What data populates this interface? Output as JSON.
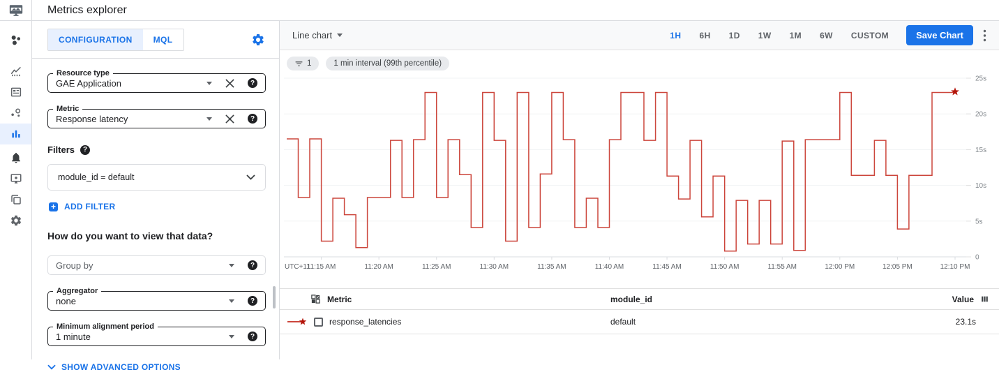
{
  "header": {
    "title": "Metrics explorer"
  },
  "sidebar": {
    "items": [
      {
        "icon": "overview-icon",
        "selected": false
      },
      {
        "icon": "metrics-icon",
        "selected": false
      },
      {
        "icon": "dashboards-icon",
        "selected": false
      },
      {
        "icon": "services-icon",
        "selected": false
      },
      {
        "icon": "metrics-explorer-icon",
        "selected": true
      },
      {
        "icon": "alerting-icon",
        "selected": false
      },
      {
        "icon": "uptime-checks-icon",
        "selected": false
      },
      {
        "icon": "groups-icon",
        "selected": false
      },
      {
        "icon": "settings-icon",
        "selected": false
      }
    ]
  },
  "config_panel": {
    "tabs": [
      {
        "label": "CONFIGURATION",
        "active": true
      },
      {
        "label": "MQL",
        "active": false
      }
    ],
    "resource_type": {
      "label": "Resource type",
      "value": "GAE Application"
    },
    "metric": {
      "label": "Metric",
      "value": "Response latency"
    },
    "filters_label": "Filters",
    "filter_value": "module_id = default",
    "add_filter_label": "ADD FILTER",
    "view_heading": "How do you want to view that data?",
    "group_by": {
      "placeholder": "Group by"
    },
    "aggregator": {
      "label": "Aggregator",
      "value": "none"
    },
    "min_alignment": {
      "label": "Minimum alignment period",
      "value": "1 minute"
    },
    "advanced_label": "SHOW ADVANCED OPTIONS"
  },
  "toolbar": {
    "chart_type": "Line chart",
    "time_ranges": [
      "1H",
      "6H",
      "1D",
      "1W",
      "1M",
      "6W",
      "CUSTOM"
    ],
    "active_range": "1H",
    "save_label": "Save Chart"
  },
  "chips": [
    {
      "icon": "filter-icon",
      "label": "1"
    },
    {
      "icon": "",
      "label": "1 min interval (99th percentile)"
    }
  ],
  "colors": {
    "accent_blue": "#1a73e8",
    "line_red": "#cc463c",
    "star_red": "#b31409",
    "tab_active_bg": "#e8f0fe"
  },
  "chart_data": {
    "type": "line",
    "step": true,
    "series": [
      {
        "name": "response_latencies",
        "color": "#cc463c"
      }
    ],
    "utc_label": "UTC+11",
    "x_start": "11:12 AM",
    "x_interval_minutes": 1,
    "x_tick_labels": [
      "11:15 AM",
      "11:20 AM",
      "11:25 AM",
      "11:30 AM",
      "11:35 AM",
      "11:40 AM",
      "11:45 AM",
      "11:50 AM",
      "11:55 AM",
      "12:00 PM",
      "12:05 PM",
      "12:10 PM"
    ],
    "x_tick_indices": [
      3,
      8,
      13,
      18,
      23,
      28,
      33,
      38,
      43,
      48,
      53,
      58
    ],
    "y_ticks": [
      0,
      5,
      10,
      15,
      20,
      25
    ],
    "y_tick_labels": [
      "0",
      "5s",
      "10s",
      "15s",
      "20s",
      "25s"
    ],
    "ylim": [
      0,
      25
    ],
    "values": [
      16.5,
      8.3,
      16.5,
      2.2,
      8.2,
      5.9,
      1.3,
      8.3,
      8.3,
      16.3,
      8.3,
      16.4,
      23,
      8.3,
      16.4,
      11.5,
      4.1,
      23,
      16.3,
      2.2,
      23,
      4.1,
      11.6,
      23,
      16.4,
      4.1,
      8.2,
      4.1,
      16.4,
      23,
      23,
      16.3,
      23,
      11.3,
      8.1,
      16.3,
      5.6,
      11.3,
      0.8,
      7.9,
      1.8,
      7.9,
      1.8,
      16.2,
      0.9,
      16.4,
      16.4,
      16.4,
      23,
      11.4,
      11.4,
      16.3,
      11.4,
      3.9,
      11.4,
      11.4,
      23,
      23,
      23.1
    ],
    "end_marker": "star",
    "last_value_label": "23.1s"
  },
  "table": {
    "columns": [
      "Metric",
      "module_id",
      "Value"
    ],
    "rows": [
      {
        "metric": "response_latencies",
        "module_id": "default",
        "value": "23.1s",
        "checked": false
      }
    ]
  }
}
